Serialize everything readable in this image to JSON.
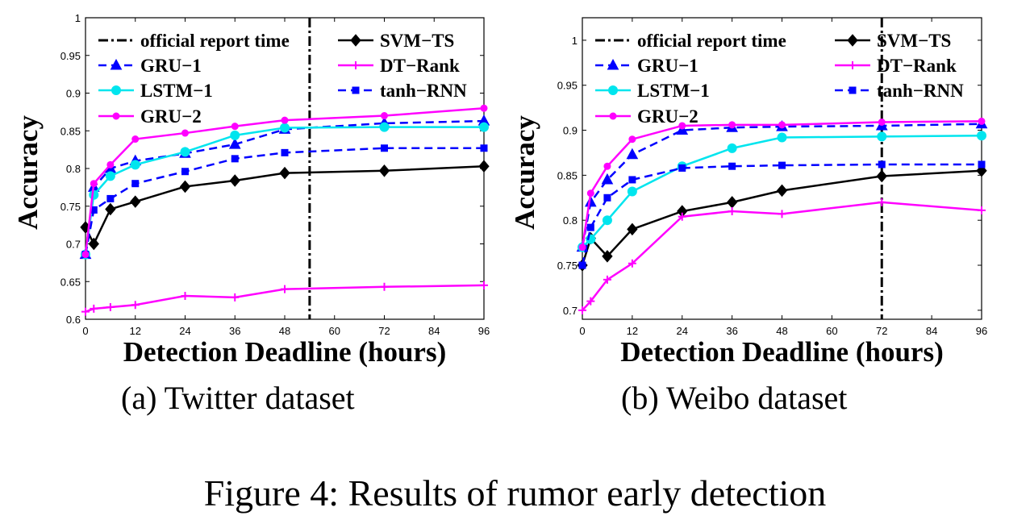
{
  "figure_caption": "Figure 4: Results of rumor early detection",
  "chart_data": [
    {
      "type": "line",
      "subcaption": "(a) Twitter dataset",
      "xlabel": "Detection Deadline (hours)",
      "ylabel": "Accuracy",
      "xlim": [
        0,
        96
      ],
      "ylim": [
        0.6,
        1.0
      ],
      "xticks": [
        0,
        12,
        24,
        36,
        48,
        60,
        72,
        84,
        96
      ],
      "yticks": [
        0.6,
        0.65,
        0.7,
        0.75,
        0.8,
        0.85,
        0.9,
        0.95,
        1
      ],
      "ytick_labels": [
        "0.6",
        "0.65",
        "0.7",
        "0.75",
        "0.8",
        "0.85",
        "0.9",
        "0.95",
        "1"
      ],
      "grid": false,
      "legend_position": "top",
      "vertical_line": {
        "label": "official report time",
        "x": 54
      },
      "series": [
        {
          "name": "SVM−TS",
          "color": "#000000",
          "dash": "solid",
          "marker": "diamond",
          "x": [
            0,
            2,
            6,
            12,
            24,
            36,
            48,
            72,
            96
          ],
          "y": [
            0.722,
            0.7,
            0.746,
            0.756,
            0.776,
            0.784,
            0.794,
            0.797,
            0.803
          ]
        },
        {
          "name": "GRU−1",
          "color": "#0000ff",
          "dash": "dashed",
          "marker": "triangle",
          "x": [
            0,
            2,
            6,
            12,
            24,
            36,
            48,
            72,
            96
          ],
          "y": [
            0.686,
            0.775,
            0.8,
            0.81,
            0.82,
            0.832,
            0.852,
            0.86,
            0.863
          ]
        },
        {
          "name": "DT−Rank",
          "color": "#ff00ff",
          "dash": "solid",
          "marker": "plus",
          "x": [
            0,
            2,
            6,
            12,
            24,
            36,
            48,
            72,
            96
          ],
          "y": [
            0.61,
            0.614,
            0.616,
            0.619,
            0.631,
            0.629,
            0.64,
            0.643,
            0.645
          ]
        },
        {
          "name": "LSTM−1",
          "color": "#00e5ee",
          "dash": "solid",
          "marker": "circle",
          "x": [
            0,
            2,
            6,
            12,
            24,
            36,
            48,
            72,
            96
          ],
          "y": [
            0.686,
            0.765,
            0.79,
            0.805,
            0.822,
            0.844,
            0.854,
            0.855,
            0.855
          ]
        },
        {
          "name": "tanh−RNN",
          "color": "#0000ff",
          "dash": "dashed",
          "marker": "square",
          "x": [
            0,
            2,
            6,
            12,
            24,
            36,
            48,
            72,
            96
          ],
          "y": [
            0.686,
            0.745,
            0.76,
            0.78,
            0.796,
            0.813,
            0.821,
            0.827,
            0.827
          ]
        },
        {
          "name": "GRU−2",
          "color": "#ff00ff",
          "dash": "solid",
          "marker": "star",
          "x": [
            0,
            2,
            6,
            12,
            24,
            36,
            48,
            72,
            96
          ],
          "y": [
            0.686,
            0.78,
            0.805,
            0.839,
            0.847,
            0.856,
            0.864,
            0.87,
            0.88
          ]
        }
      ]
    },
    {
      "type": "line",
      "subcaption": "(b) Weibo dataset",
      "xlabel": "Detection Deadline (hours)",
      "ylabel": "Accuracy",
      "xlim": [
        0,
        96
      ],
      "ylim": [
        0.69,
        1.025
      ],
      "xticks": [
        0,
        12,
        24,
        36,
        48,
        60,
        72,
        84,
        96
      ],
      "yticks": [
        0.7,
        0.75,
        0.8,
        0.85,
        0.9,
        0.95,
        1
      ],
      "ytick_labels": [
        "0.7",
        "0.75",
        "0.8",
        "0.85",
        "0.9",
        "0.95",
        "1"
      ],
      "grid": false,
      "legend_position": "top",
      "vertical_line": {
        "label": "official report time",
        "x": 72
      },
      "series": [
        {
          "name": "SVM−TS",
          "color": "#000000",
          "dash": "solid",
          "marker": "diamond",
          "x": [
            0,
            2,
            6,
            12,
            24,
            36,
            48,
            72,
            96
          ],
          "y": [
            0.75,
            0.78,
            0.76,
            0.79,
            0.81,
            0.82,
            0.833,
            0.849,
            0.855
          ]
        },
        {
          "name": "GRU−1",
          "color": "#0000ff",
          "dash": "dashed",
          "marker": "triangle",
          "x": [
            0,
            2,
            6,
            12,
            24,
            36,
            48,
            72,
            96
          ],
          "y": [
            0.77,
            0.82,
            0.845,
            0.873,
            0.9,
            0.903,
            0.904,
            0.905,
            0.907
          ]
        },
        {
          "name": "DT−Rank",
          "color": "#ff00ff",
          "dash": "solid",
          "marker": "plus",
          "x": [
            0,
            2,
            6,
            12,
            24,
            36,
            48,
            72,
            96
          ],
          "y": [
            0.7,
            0.71,
            0.734,
            0.752,
            0.804,
            0.81,
            0.807,
            0.82,
            0.811
          ]
        },
        {
          "name": "LSTM−1",
          "color": "#00e5ee",
          "dash": "solid",
          "marker": "circle",
          "x": [
            0,
            2,
            6,
            12,
            24,
            36,
            48,
            72,
            96
          ],
          "y": [
            0.77,
            0.779,
            0.8,
            0.832,
            0.86,
            0.88,
            0.892,
            0.893,
            0.894
          ]
        },
        {
          "name": "tanh−RNN",
          "color": "#0000ff",
          "dash": "dashed",
          "marker": "square",
          "x": [
            0,
            2,
            6,
            12,
            24,
            36,
            48,
            72,
            96
          ],
          "y": [
            0.75,
            0.792,
            0.825,
            0.845,
            0.858,
            0.86,
            0.861,
            0.862,
            0.862
          ]
        },
        {
          "name": "GRU−2",
          "color": "#ff00ff",
          "dash": "solid",
          "marker": "star",
          "x": [
            0,
            2,
            6,
            12,
            24,
            36,
            48,
            72,
            96
          ],
          "y": [
            0.77,
            0.83,
            0.86,
            0.89,
            0.905,
            0.906,
            0.906,
            0.909,
            0.91
          ]
        }
      ]
    }
  ]
}
